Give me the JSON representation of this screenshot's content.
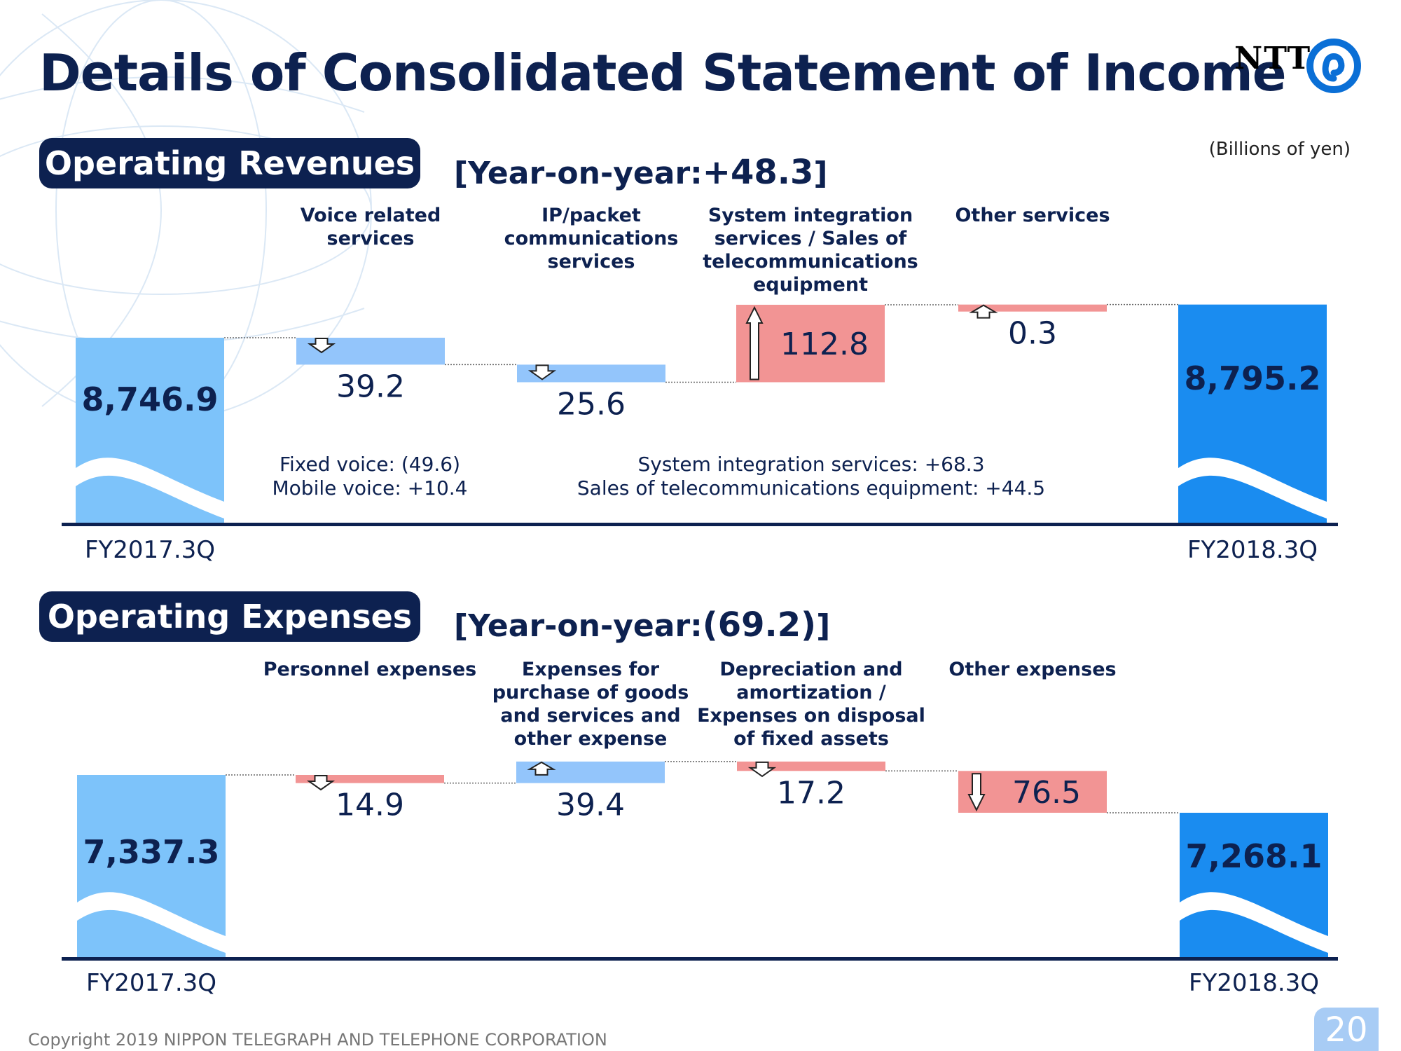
{
  "title": "Details of Consolidated Statement of Income",
  "logo": {
    "text": "NTT",
    "icon": "ntt-logo-mark-icon"
  },
  "unit_label": "(Billions of yen)",
  "colors": {
    "navy": "#0d2150",
    "start_bar": "#7dc3fa",
    "end_bar": "#1a8cf0",
    "decrease": "#93c5fb",
    "increase": "#f29494"
  },
  "revenues": {
    "section_label": "Operating Revenues",
    "yoy_prefix": "[Year-on-year:",
    "yoy_value": "+48.3",
    "yoy_suffix": "]",
    "notes": [
      {
        "lines": [
          "Fixed voice: (49.6)",
          "Mobile voice: +10.4"
        ]
      },
      {
        "lines": [
          "System integration services: +68.3",
          "Sales of telecommunications equipment: +44.5"
        ]
      }
    ]
  },
  "expenses": {
    "section_label": "Operating Expenses",
    "yoy_prefix": "[Year-on-year:",
    "yoy_value": "(69.2)",
    "yoy_suffix": "]"
  },
  "chart_data": [
    {
      "type": "bar",
      "subtype": "waterfall",
      "title": "Operating Revenues",
      "start": {
        "label": "FY2017.3Q",
        "value": 8746.9,
        "display": "8,746.9"
      },
      "end": {
        "label": "FY2018.3Q",
        "value": 8795.2,
        "display": "8,795.2"
      },
      "steps": [
        {
          "category": "Voice related services",
          "lines": [
            "Voice related",
            "services"
          ],
          "delta": -39.2,
          "display": "39.2"
        },
        {
          "category": "IP/packet communications services",
          "lines": [
            "IP/packet",
            "communications",
            "services"
          ],
          "delta": -25.6,
          "display": "25.6"
        },
        {
          "category": "System integration services / Sales of telecommunications equipment",
          "lines": [
            "System integration",
            "services / Sales of",
            "telecommunications",
            "equipment"
          ],
          "delta": 112.8,
          "display": "112.8"
        },
        {
          "category": "Other services",
          "lines": [
            "Other services"
          ],
          "delta": 0.3,
          "display": "0.3"
        }
      ]
    },
    {
      "type": "bar",
      "subtype": "waterfall",
      "title": "Operating Expenses",
      "start": {
        "label": "FY2017.3Q",
        "value": 7337.3,
        "display": "7,337.3"
      },
      "end": {
        "label": "FY2018.3Q",
        "value": 7268.1,
        "display": "7,268.1"
      },
      "steps": [
        {
          "category": "Personnel expenses",
          "lines": [
            "Personnel expenses"
          ],
          "delta": -14.9,
          "display": "14.9"
        },
        {
          "category": "Expenses for purchase of goods and services and other expense",
          "lines": [
            "Expenses for",
            "purchase of goods",
            "and services and",
            "other expense"
          ],
          "delta": 39.4,
          "display": "39.4"
        },
        {
          "category": "Depreciation and amortization / Expenses on disposal of fixed assets",
          "lines": [
            "Depreciation and",
            "amortization /",
            "Expenses on disposal",
            "of fixed assets"
          ],
          "delta": -17.2,
          "display": "17.2"
        },
        {
          "category": "Other expenses",
          "lines": [
            "Other expenses"
          ],
          "delta": -76.5,
          "display": "76.5"
        }
      ]
    }
  ],
  "footer": {
    "copyright": "Copyright 2019 NIPPON TELEGRAPH AND TELEPHONE CORPORATION",
    "page_number": "20"
  }
}
